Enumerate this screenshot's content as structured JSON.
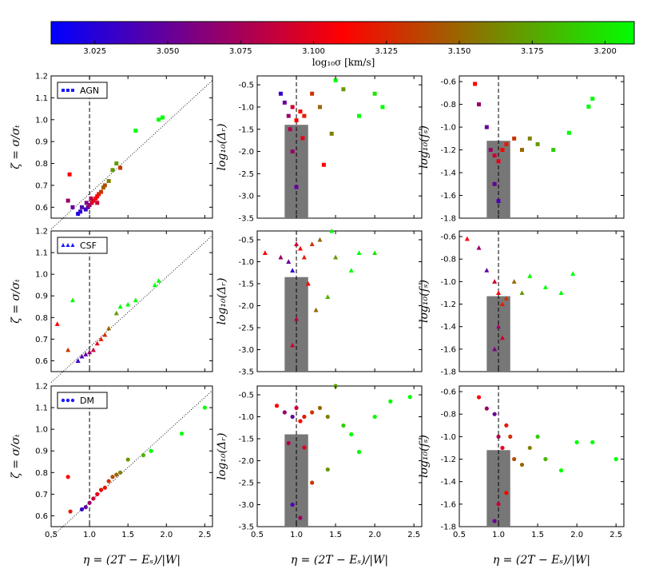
{
  "colorbar": {
    "label": "log₁₀σ  [km/s]",
    "min": 3.01,
    "max": 3.21,
    "ticks": [
      "3.025",
      "3.050",
      "3.075",
      "3.100",
      "3.125",
      "3.150",
      "3.175",
      "3.200"
    ],
    "colors": [
      "#0000ff",
      "#ff0000",
      "#00ff00"
    ]
  },
  "axes_labels": {
    "x": "η = (2T − Eₛ)/|W|",
    "y_zeta": "ζ = σ/σₜ",
    "y_delta": "log₁₀(Δᵣ)",
    "y_fs": "log₁₀(fₛ)"
  },
  "chart_data": [
    {
      "type": "scatter",
      "panel": "AGN-zeta",
      "legend": "AGN",
      "marker": "square",
      "xlim": [
        0.5,
        2.6
      ],
      "ylim": [
        0.55,
        1.2
      ],
      "xticks": [],
      "yticks": [
        "0.6",
        "0.7",
        "0.8",
        "0.9",
        "1.0",
        "1.1",
        "1.2"
      ],
      "points": [
        [
          0.72,
          0.63
        ],
        [
          0.74,
          0.75
        ],
        [
          0.78,
          0.6
        ],
        [
          0.85,
          0.57
        ],
        [
          0.88,
          0.58
        ],
        [
          0.9,
          0.6
        ],
        [
          0.95,
          0.59
        ],
        [
          0.98,
          0.6
        ],
        [
          1.0,
          0.61
        ],
        [
          1.03,
          0.62
        ],
        [
          1.05,
          0.63
        ],
        [
          1.08,
          0.64
        ],
        [
          1.1,
          0.65
        ],
        [
          1.12,
          0.66
        ],
        [
          1.15,
          0.67
        ],
        [
          1.18,
          0.69
        ],
        [
          1.2,
          0.7
        ],
        [
          1.25,
          0.72
        ],
        [
          1.3,
          0.77
        ],
        [
          1.35,
          0.8
        ],
        [
          1.4,
          0.78
        ],
        [
          1.6,
          0.95
        ],
        [
          1.9,
          1.0
        ],
        [
          1.95,
          1.01
        ],
        [
          1.1,
          0.62
        ],
        [
          1.02,
          0.64
        ],
        [
          0.96,
          0.62
        ]
      ],
      "colors": [
        0.3,
        0.5,
        0.2,
        0.05,
        0.1,
        0.15,
        0.1,
        0.2,
        0.3,
        0.4,
        0.45,
        0.5,
        0.5,
        0.55,
        0.6,
        0.7,
        0.65,
        0.75,
        0.8,
        0.8,
        0.6,
        1.0,
        1.0,
        1.0,
        0.4,
        0.35,
        0.25
      ]
    },
    {
      "type": "scatter",
      "panel": "AGN-delta",
      "marker": "square",
      "xlim": [
        0.5,
        2.6
      ],
      "ylim": [
        -3.5,
        -0.3
      ],
      "xticks": [],
      "yticks": [
        "-0.5",
        "-1.0",
        "-1.5",
        "-2.0",
        "-2.5",
        "-3.0",
        "-3.5"
      ],
      "bar": {
        "x0": 0.85,
        "x1": 1.15,
        "top": -1.4
      },
      "points": [
        [
          0.8,
          -0.7
        ],
        [
          0.85,
          -0.9
        ],
        [
          0.9,
          -1.2
        ],
        [
          0.95,
          -1.0
        ],
        [
          1.0,
          -1.3
        ],
        [
          1.05,
          -1.1
        ],
        [
          1.1,
          -1.2
        ],
        [
          1.2,
          -0.7
        ],
        [
          1.3,
          -1.0
        ],
        [
          1.5,
          -0.4
        ],
        [
          1.6,
          -0.6
        ],
        [
          1.8,
          -1.2
        ],
        [
          2.0,
          -0.7
        ],
        [
          2.1,
          -1.0
        ],
        [
          1.45,
          -1.6
        ],
        [
          1.35,
          -2.3
        ],
        [
          0.95,
          -2.0
        ],
        [
          1.0,
          -2.8
        ],
        [
          0.92,
          -1.5
        ],
        [
          1.08,
          -1.7
        ]
      ],
      "colors": [
        0.1,
        0.2,
        0.3,
        0.4,
        0.5,
        0.5,
        0.55,
        0.6,
        0.7,
        1.0,
        0.8,
        1.0,
        0.95,
        1.0,
        0.75,
        0.5,
        0.3,
        0.2,
        0.35,
        0.45
      ]
    },
    {
      "type": "scatter",
      "panel": "AGN-fs",
      "marker": "square",
      "xlim": [
        0.5,
        2.6
      ],
      "ylim": [
        -1.8,
        -0.55
      ],
      "xticks": [],
      "yticks": [
        "-0.6",
        "-0.8",
        "-1.0",
        "-1.2",
        "-1.4",
        "-1.6",
        "-1.8"
      ],
      "bar": {
        "x0": 0.85,
        "x1": 1.15,
        "top": -1.12
      },
      "points": [
        [
          0.7,
          -0.62
        ],
        [
          0.75,
          -0.8
        ],
        [
          0.85,
          -1.0
        ],
        [
          0.9,
          -1.2
        ],
        [
          0.95,
          -1.25
        ],
        [
          1.0,
          -1.3
        ],
        [
          1.05,
          -1.2
        ],
        [
          1.1,
          -1.15
        ],
        [
          1.2,
          -1.1
        ],
        [
          1.3,
          -1.2
        ],
        [
          1.4,
          -1.1
        ],
        [
          1.5,
          -1.15
        ],
        [
          1.7,
          -1.2
        ],
        [
          1.9,
          -1.05
        ],
        [
          2.2,
          -0.75
        ],
        [
          2.15,
          -0.82
        ],
        [
          0.95,
          -1.5
        ],
        [
          1.0,
          -1.65
        ]
      ],
      "colors": [
        0.5,
        0.3,
        0.2,
        0.3,
        0.4,
        0.45,
        0.5,
        0.55,
        0.6,
        0.7,
        0.75,
        0.8,
        0.9,
        1.0,
        1.0,
        1.0,
        0.2,
        0.15
      ]
    },
    {
      "type": "scatter",
      "panel": "CSF-zeta",
      "legend": "CSF",
      "marker": "triangle",
      "xlim": [
        0.5,
        2.6
      ],
      "ylim": [
        0.55,
        1.2
      ],
      "xticks": [],
      "yticks": [
        "0.6",
        "0.7",
        "0.8",
        "0.9",
        "1.0",
        "1.1",
        "1.2"
      ],
      "points": [
        [
          0.58,
          0.77
        ],
        [
          0.72,
          0.65
        ],
        [
          0.78,
          0.88
        ],
        [
          0.85,
          0.6
        ],
        [
          0.9,
          0.62
        ],
        [
          0.95,
          0.63
        ],
        [
          1.0,
          0.64
        ],
        [
          1.05,
          0.65
        ],
        [
          1.1,
          0.68
        ],
        [
          1.15,
          0.7
        ],
        [
          1.2,
          0.72
        ],
        [
          1.25,
          0.75
        ],
        [
          1.35,
          0.82
        ],
        [
          1.4,
          0.85
        ],
        [
          1.5,
          0.86
        ],
        [
          1.6,
          0.88
        ],
        [
          1.85,
          0.95
        ],
        [
          1.9,
          0.97
        ]
      ],
      "colors": [
        0.5,
        0.6,
        1.0,
        0.1,
        0.15,
        0.2,
        0.3,
        0.4,
        0.45,
        0.55,
        0.6,
        0.7,
        0.8,
        1.0,
        1.0,
        1.0,
        1.0,
        1.0
      ]
    },
    {
      "type": "scatter",
      "panel": "CSF-delta",
      "marker": "triangle",
      "xlim": [
        0.5,
        2.6
      ],
      "ylim": [
        -3.5,
        -0.3
      ],
      "xticks": [],
      "yticks": [
        "-0.5",
        "-1.0",
        "-1.5",
        "-2.0",
        "-2.5",
        "-3.0",
        "-3.5"
      ],
      "bar": {
        "x0": 0.85,
        "x1": 1.15,
        "top": -1.35
      },
      "points": [
        [
          0.6,
          -0.8
        ],
        [
          0.8,
          -0.9
        ],
        [
          0.9,
          -1.0
        ],
        [
          0.95,
          -1.2
        ],
        [
          1.0,
          -0.6
        ],
        [
          1.05,
          -0.7
        ],
        [
          1.1,
          -0.9
        ],
        [
          1.2,
          -0.6
        ],
        [
          1.3,
          -0.5
        ],
        [
          1.45,
          -0.3
        ],
        [
          1.5,
          -0.9
        ],
        [
          1.7,
          -1.2
        ],
        [
          1.8,
          -0.8
        ],
        [
          2.0,
          -0.8
        ],
        [
          1.4,
          -1.8
        ],
        [
          1.25,
          -2.1
        ],
        [
          1.0,
          -2.3
        ],
        [
          0.95,
          -2.9
        ],
        [
          1.15,
          -1.5
        ]
      ],
      "colors": [
        0.5,
        0.3,
        0.2,
        0.1,
        0.4,
        0.5,
        0.55,
        0.6,
        0.7,
        1.0,
        0.8,
        1.0,
        1.0,
        0.95,
        0.85,
        0.7,
        0.35,
        0.4,
        0.5
      ]
    },
    {
      "type": "scatter",
      "panel": "CSF-fs",
      "marker": "triangle",
      "xlim": [
        0.5,
        2.6
      ],
      "ylim": [
        -1.8,
        -0.55
      ],
      "xticks": [],
      "yticks": [
        "-0.6",
        "-0.8",
        "-1.0",
        "-1.2",
        "-1.4",
        "-1.6",
        "-1.8"
      ],
      "bar": {
        "x0": 0.85,
        "x1": 1.15,
        "top": -1.13
      },
      "points": [
        [
          0.6,
          -0.62
        ],
        [
          0.75,
          -0.7
        ],
        [
          0.85,
          -0.9
        ],
        [
          0.95,
          -1.0
        ],
        [
          1.0,
          -1.1
        ],
        [
          1.05,
          -1.2
        ],
        [
          1.1,
          -1.15
        ],
        [
          1.2,
          -1.0
        ],
        [
          1.3,
          -1.1
        ],
        [
          1.4,
          -0.95
        ],
        [
          1.6,
          -1.05
        ],
        [
          1.8,
          -1.1
        ],
        [
          1.95,
          -0.93
        ],
        [
          1.0,
          -1.4
        ],
        [
          0.95,
          -1.6
        ],
        [
          1.05,
          -1.5
        ]
      ],
      "colors": [
        0.5,
        0.3,
        0.2,
        0.4,
        0.5,
        0.55,
        0.6,
        0.7,
        0.8,
        1.0,
        1.0,
        1.0,
        1.0,
        0.3,
        0.25,
        0.4
      ]
    },
    {
      "type": "scatter",
      "panel": "DM-zeta",
      "legend": "DM",
      "marker": "circle",
      "xlim": [
        0.5,
        2.6
      ],
      "ylim": [
        0.55,
        1.2
      ],
      "xticks": [
        "0.5",
        "1.0",
        "1.5",
        "2.0",
        "2.5"
      ],
      "yticks": [
        "0.6",
        "0.7",
        "0.8",
        "0.9",
        "1.0",
        "1.1",
        "1.2"
      ],
      "points": [
        [
          0.72,
          0.78
        ],
        [
          0.75,
          0.62
        ],
        [
          0.9,
          0.63
        ],
        [
          0.95,
          0.64
        ],
        [
          1.0,
          0.66
        ],
        [
          1.05,
          0.68
        ],
        [
          1.1,
          0.7
        ],
        [
          1.15,
          0.72
        ],
        [
          1.2,
          0.73
        ],
        [
          1.25,
          0.76
        ],
        [
          1.3,
          0.78
        ],
        [
          1.35,
          0.79
        ],
        [
          1.4,
          0.8
        ],
        [
          1.5,
          0.86
        ],
        [
          1.7,
          0.88
        ],
        [
          1.8,
          0.9
        ],
        [
          2.2,
          0.98
        ],
        [
          2.5,
          1.1
        ]
      ],
      "colors": [
        0.5,
        0.55,
        0.1,
        0.2,
        0.3,
        0.4,
        0.45,
        0.5,
        0.55,
        0.6,
        0.65,
        0.7,
        0.75,
        0.8,
        0.85,
        1.0,
        1.0,
        1.0
      ]
    },
    {
      "type": "scatter",
      "panel": "DM-delta",
      "marker": "circle",
      "xlim": [
        0.5,
        2.6
      ],
      "ylim": [
        -3.5,
        -0.3
      ],
      "xticks": [
        "0.5",
        "1.0",
        "1.5",
        "2.0",
        "2.5"
      ],
      "yticks": [
        "-0.5",
        "-1.0",
        "-1.5",
        "-2.0",
        "-2.5",
        "-3.0",
        "-3.5"
      ],
      "bar": {
        "x0": 0.85,
        "x1": 1.15,
        "top": -1.4
      },
      "points": [
        [
          0.75,
          -0.75
        ],
        [
          0.85,
          -0.9
        ],
        [
          0.95,
          -1.0
        ],
        [
          1.0,
          -0.8
        ],
        [
          1.05,
          -1.1
        ],
        [
          1.1,
          -1.0
        ],
        [
          1.2,
          -0.9
        ],
        [
          1.3,
          -0.8
        ],
        [
          1.4,
          -1.0
        ],
        [
          1.5,
          -0.3
        ],
        [
          1.6,
          -1.2
        ],
        [
          1.7,
          -1.4
        ],
        [
          1.8,
          -1.8
        ],
        [
          2.0,
          -1.0
        ],
        [
          2.2,
          -0.65
        ],
        [
          2.45,
          -0.55
        ],
        [
          1.4,
          -2.2
        ],
        [
          1.2,
          -2.5
        ],
        [
          0.95,
          -3.0
        ],
        [
          1.05,
          -3.3
        ],
        [
          1.1,
          -1.7
        ],
        [
          0.9,
          -1.6
        ]
      ],
      "colors": [
        0.5,
        0.3,
        0.2,
        0.4,
        0.5,
        0.55,
        0.6,
        0.7,
        0.75,
        0.8,
        0.9,
        1.0,
        1.0,
        1.0,
        1.0,
        1.0,
        0.8,
        0.6,
        0.15,
        0.3,
        0.45,
        0.35
      ]
    },
    {
      "type": "scatter",
      "panel": "DM-fs",
      "marker": "circle",
      "xlim": [
        0.5,
        2.6
      ],
      "ylim": [
        -1.8,
        -0.55
      ],
      "xticks": [
        "0.5",
        "1.0",
        "1.5",
        "2.0",
        "2.5"
      ],
      "yticks": [
        "-0.6",
        "-0.8",
        "-1.0",
        "-1.2",
        "-1.4",
        "-1.6",
        "-1.8"
      ],
      "bar": {
        "x0": 0.85,
        "x1": 1.15,
        "top": -1.12
      },
      "points": [
        [
          0.75,
          -0.65
        ],
        [
          0.85,
          -0.75
        ],
        [
          0.95,
          -0.8
        ],
        [
          1.0,
          -1.0
        ],
        [
          1.05,
          -1.1
        ],
        [
          1.1,
          -0.9
        ],
        [
          1.15,
          -1.0
        ],
        [
          1.2,
          -1.2
        ],
        [
          1.3,
          -1.25
        ],
        [
          1.4,
          -1.1
        ],
        [
          1.6,
          -1.2
        ],
        [
          1.8,
          -1.3
        ],
        [
          2.0,
          -1.05
        ],
        [
          2.2,
          -1.05
        ],
        [
          2.5,
          -1.2
        ],
        [
          1.5,
          -1.0
        ],
        [
          1.0,
          -1.6
        ],
        [
          0.95,
          -1.75
        ],
        [
          1.1,
          -1.5
        ]
      ],
      "colors": [
        0.5,
        0.3,
        0.2,
        0.35,
        0.45,
        0.55,
        0.6,
        0.65,
        0.7,
        0.75,
        0.85,
        1.0,
        1.0,
        1.0,
        1.0,
        0.9,
        0.4,
        0.2,
        0.5
      ]
    }
  ]
}
